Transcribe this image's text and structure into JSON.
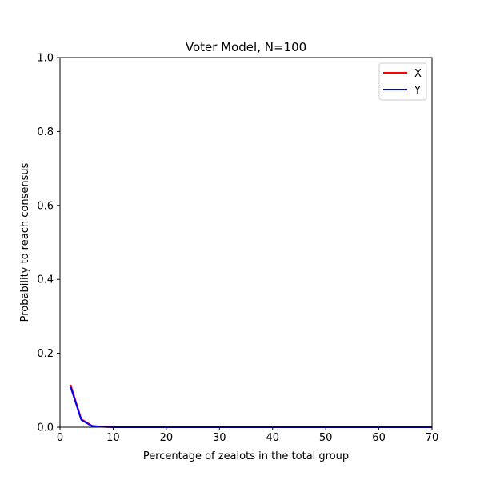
{
  "chart_data": {
    "type": "line",
    "title": "Voter Model, N=100",
    "xlabel": "Percentage of zealots in the total group",
    "ylabel": "Probability to reach consensus",
    "xlim": [
      0,
      70
    ],
    "ylim": [
      0,
      1.0
    ],
    "x_ticks": [
      0,
      10,
      20,
      30,
      40,
      50,
      60,
      70
    ],
    "y_ticks": [
      0.0,
      0.2,
      0.4,
      0.6,
      0.8,
      1.0
    ],
    "x_tick_labels": [
      "0",
      "10",
      "20",
      "30",
      "40",
      "50",
      "60",
      "70"
    ],
    "y_tick_labels": [
      "0.0",
      "0.2",
      "0.4",
      "0.6",
      "0.8",
      "1.0"
    ],
    "grid": false,
    "legend_position": "top-right",
    "x": [
      2,
      4,
      6,
      8,
      10,
      12,
      14,
      16,
      18,
      20,
      22,
      24,
      26,
      28,
      30,
      32,
      34,
      36,
      38,
      40,
      42,
      44,
      46,
      48,
      50,
      52,
      54,
      56,
      58,
      60,
      62,
      64,
      66,
      68,
      70
    ],
    "series": [
      {
        "name": "X",
        "color": "#ff0000",
        "values": [
          0.115,
          0.022,
          0.004,
          0.001,
          0,
          0,
          0,
          0,
          0,
          0,
          0,
          0,
          0,
          0,
          0,
          0,
          0,
          0,
          0,
          0,
          0,
          0,
          0,
          0,
          0,
          0,
          0,
          0,
          0,
          0,
          0,
          0,
          0,
          0,
          0
        ]
      },
      {
        "name": "Y",
        "color": "#0000ff",
        "values": [
          0.109,
          0.02,
          0.003,
          0.001,
          0,
          0,
          0,
          0,
          0,
          0,
          0,
          0,
          0,
          0,
          0,
          0,
          0,
          0,
          0,
          0,
          0,
          0,
          0,
          0,
          0,
          0,
          0,
          0,
          0,
          0,
          0,
          0,
          0,
          0,
          0
        ]
      }
    ]
  }
}
